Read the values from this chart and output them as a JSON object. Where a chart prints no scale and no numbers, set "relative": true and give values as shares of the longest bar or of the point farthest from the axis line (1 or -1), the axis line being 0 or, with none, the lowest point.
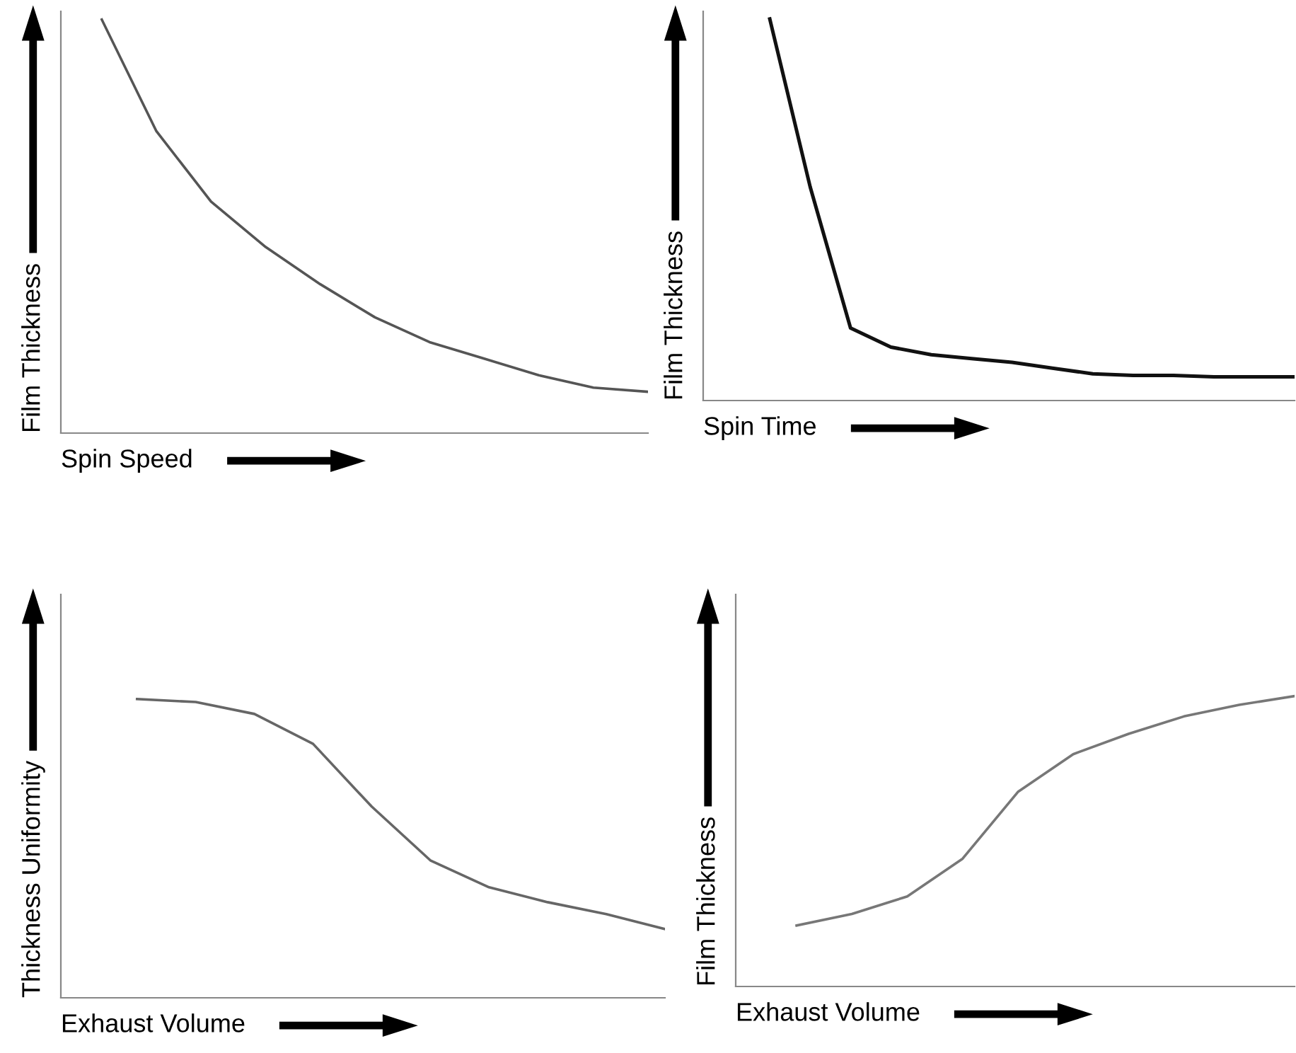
{
  "chart_data": [
    {
      "type": "line",
      "relative": true,
      "xlabel": "Spin Speed",
      "ylabel": "Film Thickness",
      "categories": [
        null,
        null,
        null,
        null,
        null,
        null,
        null,
        null,
        null,
        null,
        null
      ],
      "series": [
        {
          "color": "#555555",
          "values": [
            1,
            0.73,
            0.56,
            0.45,
            0.36,
            0.28,
            0.22,
            0.18,
            0.14,
            0.11,
            0.1
          ]
        }
      ]
    },
    {
      "type": "line",
      "relative": true,
      "xlabel": "Spin Time",
      "ylabel": "Film Thickness",
      "categories": [
        null,
        null,
        null,
        null,
        null,
        null,
        null,
        null,
        null,
        null,
        null,
        null,
        null,
        null
      ],
      "series": [
        {
          "color": "#111111",
          "values": [
            1,
            0.56,
            0.19,
            0.14,
            0.12,
            0.11,
            0.1,
            0.085,
            0.07,
            0.066,
            0.066,
            0.062,
            0.062,
            0.062
          ]
        }
      ]
    },
    {
      "type": "line",
      "relative": true,
      "xlabel": "Exhaust Volume",
      "ylabel": "Thickness Uniformity",
      "categories": [
        null,
        null,
        null,
        null,
        null,
        null,
        null,
        null,
        null,
        null
      ],
      "series": [
        {
          "color": "#666666",
          "values": [
            1,
            0.99,
            0.95,
            0.85,
            0.64,
            0.46,
            0.37,
            0.32,
            0.28,
            0.23
          ]
        }
      ]
    },
    {
      "type": "line",
      "relative": true,
      "xlabel": "Exhaust Volume",
      "ylabel": "Film Thickness",
      "categories": [
        null,
        null,
        null,
        null,
        null,
        null,
        null,
        null,
        null,
        null
      ],
      "series": [
        {
          "color": "#777777",
          "values": [
            0.21,
            0.25,
            0.31,
            0.44,
            0.67,
            0.8,
            0.87,
            0.93,
            0.97,
            1
          ]
        }
      ]
    }
  ]
}
